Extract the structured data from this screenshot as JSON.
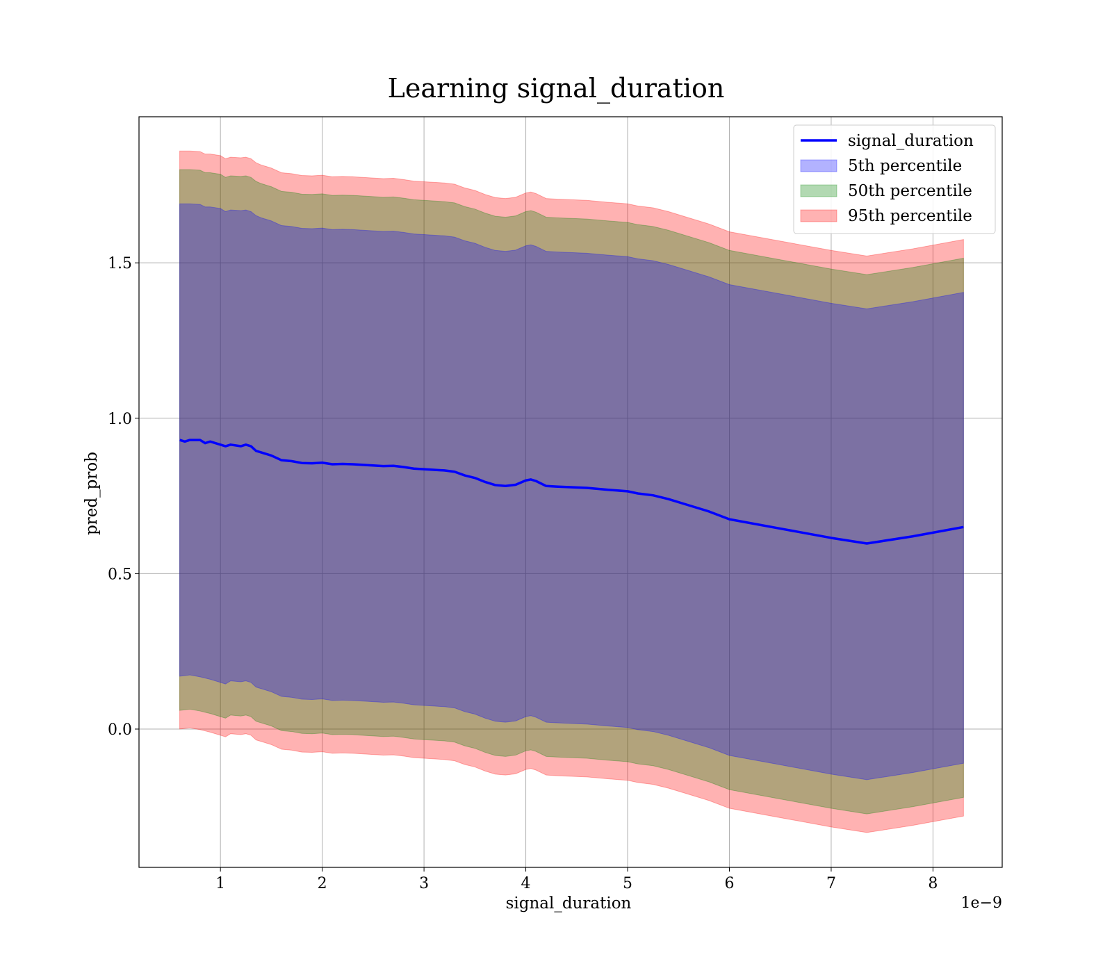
{
  "chart_data": {
    "type": "area",
    "title": "Learning signal_duration",
    "xlabel": "signal_duration",
    "ylabel": "pred_prob",
    "x_offset_label": "1e−9",
    "xlim": [
      2e-10,
      8.68e-09
    ],
    "ylim": [
      -0.445,
      1.97
    ],
    "grid": true,
    "legend_position": "top-right",
    "x_ticks": [
      1e-09,
      2e-09,
      3e-09,
      4e-09,
      5e-09,
      6e-09,
      7e-09,
      8e-09
    ],
    "x_tick_labels": [
      "1",
      "2",
      "3",
      "4",
      "5",
      "6",
      "7",
      "8"
    ],
    "y_ticks": [
      0.0,
      0.5,
      1.0,
      1.5
    ],
    "y_tick_labels": [
      "0.0",
      "0.5",
      "1.0",
      "1.5"
    ],
    "x": [
      6e-10,
      6.5e-10,
      7e-10,
      8e-10,
      8.5e-10,
      9e-10,
      1e-09,
      1.05e-09,
      1.1e-09,
      1.2e-09,
      1.25e-09,
      1.3e-09,
      1.35e-09,
      1.4e-09,
      1.5e-09,
      1.6e-09,
      1.7e-09,
      1.8e-09,
      1.9e-09,
      2e-09,
      2.1e-09,
      2.2e-09,
      2.3e-09,
      2.4e-09,
      2.5e-09,
      2.6e-09,
      2.7e-09,
      2.8e-09,
      2.9e-09,
      3e-09,
      3.2e-09,
      3.3e-09,
      3.4e-09,
      3.5e-09,
      3.6e-09,
      3.7e-09,
      3.8e-09,
      3.9e-09,
      4e-09,
      4.05e-09,
      4.1e-09,
      4.2e-09,
      4.3e-09,
      4.6e-09,
      4.8e-09,
      5e-09,
      5.1e-09,
      5.25e-09,
      5.4e-09,
      5.6e-09,
      5.8e-09,
      6e-09,
      6.5e-09,
      7e-09,
      7.35e-09,
      7.8e-09,
      8.3e-09
    ],
    "series": [
      {
        "name": "signal_duration",
        "color": "#0000ff",
        "values": [
          0.93,
          0.925,
          0.93,
          0.93,
          0.92,
          0.925,
          0.915,
          0.91,
          0.915,
          0.91,
          0.915,
          0.91,
          0.895,
          0.89,
          0.88,
          0.865,
          0.862,
          0.856,
          0.855,
          0.857,
          0.852,
          0.853,
          0.852,
          0.85,
          0.848,
          0.846,
          0.847,
          0.843,
          0.838,
          0.836,
          0.832,
          0.828,
          0.816,
          0.808,
          0.795,
          0.785,
          0.782,
          0.786,
          0.8,
          0.803,
          0.798,
          0.782,
          0.78,
          0.776,
          0.77,
          0.765,
          0.758,
          0.752,
          0.74,
          0.72,
          0.7,
          0.675,
          0.645,
          0.615,
          0.597,
          0.62,
          0.65
        ]
      },
      {
        "name": "5th percentile",
        "color": "#0000ff",
        "lower": [
          0.17,
          0.172,
          0.174,
          0.168,
          0.164,
          0.16,
          0.15,
          0.145,
          0.155,
          0.152,
          0.155,
          0.15,
          0.135,
          0.13,
          0.12,
          0.105,
          0.102,
          0.096,
          0.095,
          0.097,
          0.092,
          0.093,
          0.092,
          0.09,
          0.088,
          0.086,
          0.087,
          0.083,
          0.078,
          0.076,
          0.072,
          0.068,
          0.056,
          0.048,
          0.035,
          0.025,
          0.022,
          0.026,
          0.04,
          0.043,
          0.038,
          0.022,
          0.02,
          0.016,
          0.01,
          0.005,
          -0.002,
          -0.008,
          -0.02,
          -0.04,
          -0.06,
          -0.085,
          -0.115,
          -0.145,
          -0.163,
          -0.14,
          -0.11
        ],
        "upper": [
          1.69,
          1.69,
          1.69,
          1.688,
          1.68,
          1.68,
          1.675,
          1.665,
          1.67,
          1.668,
          1.67,
          1.665,
          1.652,
          1.645,
          1.635,
          1.62,
          1.617,
          1.611,
          1.61,
          1.612,
          1.607,
          1.608,
          1.607,
          1.605,
          1.603,
          1.601,
          1.602,
          1.598,
          1.593,
          1.591,
          1.587,
          1.583,
          1.571,
          1.563,
          1.55,
          1.54,
          1.537,
          1.541,
          1.555,
          1.558,
          1.553,
          1.537,
          1.535,
          1.531,
          1.525,
          1.52,
          1.513,
          1.507,
          1.495,
          1.475,
          1.455,
          1.43,
          1.4,
          1.37,
          1.352,
          1.375,
          1.405
        ]
      },
      {
        "name": "50th percentile",
        "color": "#008000",
        "lower": [
          0.06,
          0.062,
          0.064,
          0.058,
          0.054,
          0.05,
          0.04,
          0.035,
          0.045,
          0.042,
          0.045,
          0.04,
          0.025,
          0.02,
          0.01,
          -0.005,
          -0.008,
          -0.014,
          -0.015,
          -0.013,
          -0.018,
          -0.017,
          -0.018,
          -0.02,
          -0.022,
          -0.024,
          -0.023,
          -0.027,
          -0.032,
          -0.034,
          -0.038,
          -0.042,
          -0.054,
          -0.062,
          -0.075,
          -0.085,
          -0.088,
          -0.084,
          -0.07,
          -0.067,
          -0.072,
          -0.088,
          -0.09,
          -0.094,
          -0.1,
          -0.105,
          -0.112,
          -0.118,
          -0.13,
          -0.15,
          -0.17,
          -0.195,
          -0.225,
          -0.255,
          -0.273,
          -0.25,
          -0.22
        ],
        "upper": [
          1.8,
          1.8,
          1.8,
          1.798,
          1.79,
          1.79,
          1.785,
          1.775,
          1.78,
          1.778,
          1.78,
          1.775,
          1.762,
          1.755,
          1.745,
          1.73,
          1.727,
          1.721,
          1.72,
          1.722,
          1.717,
          1.718,
          1.717,
          1.715,
          1.713,
          1.711,
          1.712,
          1.708,
          1.703,
          1.701,
          1.697,
          1.693,
          1.681,
          1.673,
          1.66,
          1.65,
          1.647,
          1.651,
          1.665,
          1.668,
          1.663,
          1.647,
          1.645,
          1.641,
          1.635,
          1.63,
          1.623,
          1.617,
          1.605,
          1.585,
          1.565,
          1.54,
          1.51,
          1.48,
          1.462,
          1.485,
          1.515
        ]
      },
      {
        "name": "95th percentile",
        "color": "#ff0000",
        "lower": [
          0.0,
          0.002,
          0.004,
          -0.002,
          -0.006,
          -0.01,
          -0.02,
          -0.025,
          -0.015,
          -0.018,
          -0.015,
          -0.02,
          -0.035,
          -0.04,
          -0.05,
          -0.065,
          -0.068,
          -0.074,
          -0.075,
          -0.073,
          -0.078,
          -0.077,
          -0.078,
          -0.08,
          -0.082,
          -0.084,
          -0.083,
          -0.087,
          -0.092,
          -0.094,
          -0.098,
          -0.102,
          -0.114,
          -0.122,
          -0.135,
          -0.145,
          -0.148,
          -0.144,
          -0.13,
          -0.127,
          -0.132,
          -0.148,
          -0.15,
          -0.154,
          -0.16,
          -0.165,
          -0.172,
          -0.178,
          -0.19,
          -0.21,
          -0.23,
          -0.255,
          -0.285,
          -0.315,
          -0.333,
          -0.31,
          -0.28
        ],
        "upper": [
          1.86,
          1.86,
          1.86,
          1.858,
          1.85,
          1.85,
          1.845,
          1.835,
          1.84,
          1.838,
          1.84,
          1.835,
          1.822,
          1.815,
          1.805,
          1.79,
          1.787,
          1.781,
          1.78,
          1.782,
          1.777,
          1.778,
          1.777,
          1.775,
          1.773,
          1.771,
          1.772,
          1.768,
          1.763,
          1.761,
          1.757,
          1.753,
          1.741,
          1.733,
          1.72,
          1.71,
          1.707,
          1.711,
          1.725,
          1.728,
          1.723,
          1.707,
          1.705,
          1.701,
          1.695,
          1.69,
          1.683,
          1.677,
          1.665,
          1.645,
          1.625,
          1.6,
          1.57,
          1.54,
          1.522,
          1.545,
          1.575
        ]
      }
    ]
  }
}
